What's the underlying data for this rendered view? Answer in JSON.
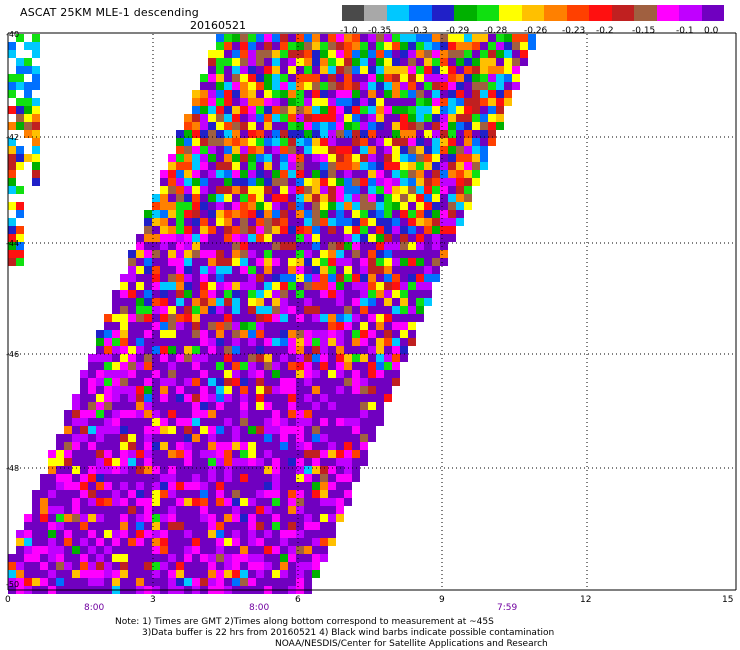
{
  "header": {
    "title": "ASCAT 25KM MLE-1 descending",
    "date": "20160521"
  },
  "legend": {
    "colors": [
      "#4a4a4a",
      "#a8a8a8",
      "#00c8ff",
      "#0070ff",
      "#2020c8",
      "#00b000",
      "#10e010",
      "#ffff00",
      "#ffc000",
      "#ff8000",
      "#ff4000",
      "#ff1010",
      "#c02020",
      "#a06040",
      "#ff00ff",
      "#c000ff",
      "#7000c0"
    ],
    "ticks": [
      "-1.0",
      "-0.35",
      "-0.3",
      "-0.29",
      "-0.28",
      "-0.26",
      "-0.23",
      "-0.2",
      "-0.15",
      "-0.1",
      "0.0"
    ]
  },
  "map": {
    "y_ticks": [
      "-40",
      "-42",
      "-44",
      "-46",
      "-48",
      "-50"
    ],
    "x_ticks": [
      "0",
      "3",
      "6",
      "9",
      "12",
      "15"
    ],
    "time_labels": [
      "8:00",
      "8:00",
      "7:59"
    ]
  },
  "notes": {
    "line1": "Note: 1) Times are GMT 2)Times along bottom correspond to measurement at ~45S",
    "line2": "3)Data buffer is 22 hrs from 20160521 4) Black wind barbs indicate possible contamination",
    "line3": "NOAA/NESDIS/Center for Satellite Applications and Research"
  }
}
